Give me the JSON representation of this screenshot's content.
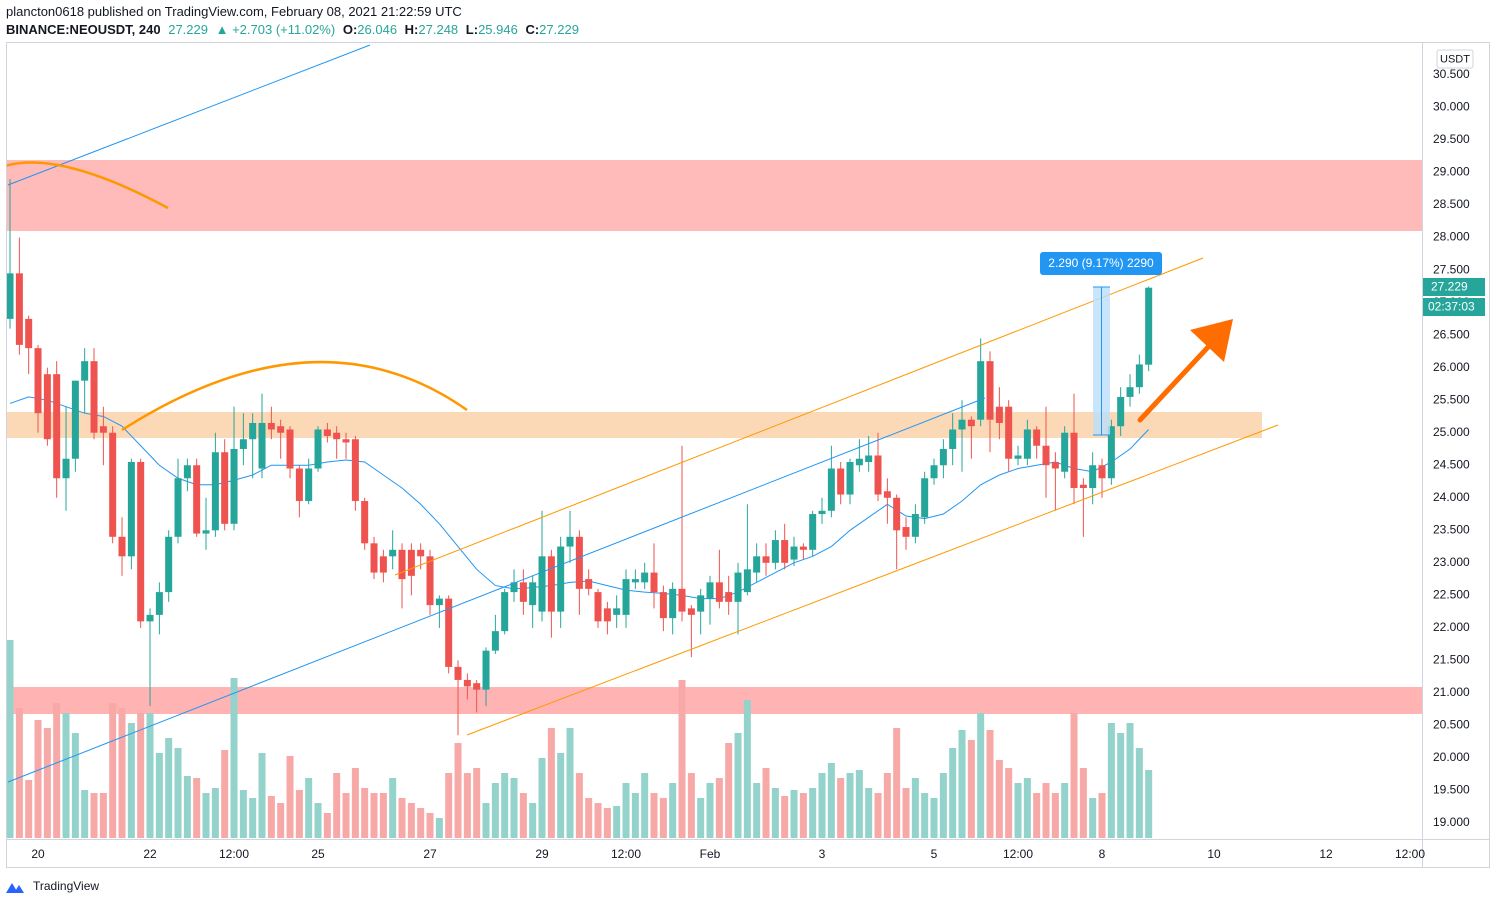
{
  "header": {
    "publisher_line": "plancton0618 published on TradingView.com, February 08, 2021 21:22:59 UTC",
    "symbol": "BINANCE:NEOUSDT, 240",
    "last": "27.229",
    "change": "▲ +2.703 (+11.02%)",
    "ohlc": [
      {
        "key": "O:",
        "value": "26.046"
      },
      {
        "key": "H:",
        "value": "27.248"
      },
      {
        "key": "L:",
        "value": "25.946"
      },
      {
        "key": "C:",
        "value": "27.229"
      }
    ]
  },
  "axis_currency": "USDT",
  "last_price_label": "27.229",
  "countdown": "02:37:03",
  "measure_label": "2.290 (9.17%) 2290",
  "footer": "TradingView",
  "chart_data": {
    "type": "candlestick",
    "x": [
      19.5,
      19.667,
      19.833,
      20,
      20.167,
      20.333,
      20.5,
      20.667,
      20.833,
      21,
      21.167,
      21.333,
      21.5,
      21.667,
      21.833,
      22,
      22.167,
      22.333,
      22.5,
      22.667,
      22.833,
      23,
      23.167,
      23.333,
      23.5,
      23.667,
      23.833,
      24,
      24.167,
      24.333,
      24.5,
      24.667,
      24.833,
      25,
      25.167,
      25.333,
      25.5,
      25.667,
      25.833,
      26,
      26.167,
      26.333,
      26.5,
      26.667,
      26.833,
      27,
      27.167,
      27.333,
      27.5,
      27.667,
      27.833,
      28,
      28.167,
      28.333,
      28.5,
      28.667,
      28.833,
      29,
      29.167,
      29.333,
      29.5,
      29.667,
      29.833,
      30,
      30.167,
      30.333,
      30.5,
      30.667,
      30.833,
      31,
      31.167,
      31.333,
      31.5,
      31.667,
      31.833,
      32,
      32.167,
      32.333,
      32.5,
      32.667,
      32.833,
      33,
      33.167,
      33.333,
      33.5,
      33.667,
      33.833,
      34,
      34.167,
      34.333,
      34.5,
      34.667,
      34.833,
      35,
      35.167,
      35.333,
      35.5,
      35.667,
      35.833,
      36,
      36.167,
      36.333,
      36.5,
      36.667,
      36.833,
      37,
      37.167,
      37.333,
      37.5,
      37.667,
      37.833,
      38,
      38.167,
      38.333,
      38.5,
      38.667,
      38.833,
      39,
      39.167,
      39.333,
      39.5,
      39.667,
      39.833
    ],
    "open": [
      26.75,
      27.45,
      26.75,
      26.3,
      25.9,
      25.9,
      24.3,
      24.6,
      25.8,
      26.1,
      25.1,
      25.0,
      23.4,
      23.1,
      24.55,
      22.1,
      22.2,
      22.55,
      23.4,
      24.3,
      24.5,
      23.45,
      23.5,
      24.7,
      23.6,
      24.75,
      24.9,
      24.45,
      25.15,
      25.1,
      25.05,
      24.45,
      23.95,
      24.45,
      25.05,
      25.0,
      24.9,
      24.9,
      23.95,
      23.3,
      23.1,
      23.1,
      23.2,
      23.2,
      23.2,
      23.1,
      22.35,
      22.45,
      21.4,
      21.2,
      21.15,
      21.05,
      21.65,
      21.95,
      22.55,
      22.7,
      22.35,
      22.25,
      23.1,
      22.25,
      23.25,
      23.4,
      22.75,
      22.55,
      22.3,
      22.2,
      22.2,
      22.7,
      22.7,
      22.85,
      22.55,
      22.15,
      22.6,
      22.3,
      22.25,
      22.45,
      22.7,
      22.55,
      22.4,
      22.55,
      22.85,
      23.1,
      23.0,
      23.35,
      23.05,
      23.25,
      23.2,
      23.75,
      23.8,
      24.45,
      24.05,
      24.5,
      24.55,
      24.65,
      24.1,
      24.0,
      23.55,
      23.4,
      23.7,
      24.3,
      24.5,
      24.75,
      25.05,
      25.2,
      25.2,
      26.1,
      25.4,
      25.4,
      24.6,
      24.6,
      25.05,
      24.8,
      24.55,
      24.4,
      25.0,
      24.2,
      24.15,
      24.5,
      24.3,
      25.1,
      25.55,
      25.7,
      26.046
    ],
    "high": [
      28.9,
      28.0,
      26.8,
      26.35,
      26.0,
      26.1,
      25.4,
      25.8,
      26.3,
      26.3,
      25.4,
      25.1,
      23.7,
      24.6,
      24.6,
      22.3,
      22.7,
      23.5,
      24.6,
      24.6,
      24.6,
      24.0,
      25.0,
      24.9,
      25.4,
      25.3,
      25.3,
      25.6,
      25.4,
      25.2,
      25.1,
      24.5,
      24.6,
      25.1,
      25.15,
      25.1,
      25.0,
      24.95,
      24.0,
      23.4,
      23.2,
      23.5,
      23.3,
      23.3,
      23.3,
      23.2,
      22.5,
      22.5,
      21.5,
      21.3,
      21.2,
      21.7,
      22.2,
      22.6,
      22.9,
      22.9,
      22.8,
      23.8,
      23.2,
      23.4,
      23.8,
      23.5,
      22.9,
      22.6,
      22.4,
      22.5,
      22.9,
      22.9,
      23.0,
      23.3,
      22.65,
      22.7,
      24.8,
      22.35,
      22.6,
      22.8,
      23.2,
      22.8,
      23.0,
      23.9,
      23.3,
      23.3,
      23.5,
      23.6,
      23.4,
      23.3,
      23.8,
      24.0,
      24.8,
      24.55,
      24.6,
      24.9,
      24.95,
      25.0,
      24.3,
      24.05,
      23.7,
      23.9,
      24.4,
      24.6,
      24.9,
      25.3,
      25.5,
      25.25,
      26.45,
      26.25,
      25.7,
      25.5,
      24.8,
      25.2,
      25.1,
      25.4,
      24.7,
      25.1,
      25.6,
      24.3,
      24.7,
      24.6,
      25.2,
      25.7,
      25.9,
      26.2,
      27.248
    ],
    "low": [
      26.6,
      26.2,
      25.9,
      25.0,
      24.8,
      24.0,
      23.8,
      24.4,
      25.3,
      24.9,
      24.5,
      23.3,
      22.8,
      22.9,
      22.0,
      20.8,
      21.9,
      22.4,
      23.3,
      24.1,
      23.4,
      23.2,
      23.4,
      23.5,
      23.5,
      24.5,
      24.3,
      24.3,
      24.9,
      24.6,
      24.3,
      23.7,
      23.9,
      24.4,
      24.85,
      24.6,
      24.6,
      23.8,
      23.2,
      22.75,
      22.7,
      22.9,
      22.3,
      22.5,
      22.9,
      22.2,
      22.0,
      21.3,
      20.35,
      20.9,
      20.7,
      20.8,
      21.6,
      21.9,
      22.4,
      22.2,
      22.0,
      22.1,
      21.85,
      22.0,
      23.0,
      22.2,
      22.5,
      22.0,
      21.9,
      22.0,
      22.0,
      22.6,
      22.6,
      22.3,
      21.95,
      21.9,
      22.1,
      21.55,
      21.9,
      22.05,
      22.3,
      22.2,
      21.9,
      22.5,
      22.7,
      22.8,
      22.9,
      22.9,
      22.95,
      23.05,
      23.1,
      23.6,
      23.7,
      23.9,
      23.9,
      24.4,
      24.4,
      23.95,
      23.6,
      22.9,
      23.2,
      23.3,
      23.6,
      24.2,
      24.3,
      24.5,
      24.4,
      24.6,
      25.1,
      24.7,
      24.9,
      24.4,
      24.5,
      24.5,
      24.6,
      24.0,
      23.8,
      24.3,
      23.9,
      23.4,
      23.9,
      24.0,
      24.2,
      24.95,
      25.4,
      25.6,
      25.946
    ],
    "close": [
      27.45,
      26.35,
      26.3,
      25.3,
      24.9,
      24.3,
      24.6,
      25.8,
      26.1,
      25.0,
      25.0,
      23.4,
      23.1,
      24.55,
      22.1,
      22.2,
      22.55,
      23.4,
      24.3,
      24.5,
      23.45,
      23.5,
      24.7,
      23.6,
      24.75,
      24.9,
      25.15,
      25.15,
      25.05,
      25.0,
      24.45,
      23.95,
      24.45,
      25.05,
      24.95,
      24.9,
      24.85,
      23.95,
      23.3,
      22.85,
      22.85,
      23.2,
      22.75,
      22.8,
      23.1,
      22.35,
      22.45,
      21.4,
      21.2,
      21.1,
      21.05,
      21.65,
      21.95,
      22.55,
      22.7,
      22.4,
      22.7,
      23.1,
      22.25,
      23.25,
      23.4,
      22.6,
      22.6,
      22.1,
      22.1,
      22.3,
      22.75,
      22.75,
      22.85,
      22.55,
      22.15,
      22.6,
      22.25,
      22.2,
      22.5,
      22.7,
      22.4,
      22.4,
      22.85,
      22.9,
      23.1,
      23.0,
      23.35,
      23.0,
      23.25,
      23.2,
      23.75,
      23.8,
      24.45,
      24.05,
      24.55,
      24.6,
      24.65,
      24.05,
      24.0,
      23.5,
      23.4,
      23.75,
      24.3,
      24.5,
      24.75,
      25.05,
      25.2,
      25.1,
      26.1,
      25.2,
      25.15,
      24.6,
      24.65,
      25.05,
      24.8,
      24.5,
      24.45,
      25.0,
      24.15,
      24.15,
      24.5,
      24.3,
      25.1,
      25.55,
      25.7,
      26.05,
      27.229
    ],
    "volume": [
      198,
      130,
      58,
      118,
      110,
      135,
      125,
      105,
      48,
      45,
      45,
      135,
      130,
      115,
      125,
      125,
      85,
      100,
      90,
      62,
      60,
      45,
      50,
      88,
      160,
      48,
      40,
      85,
      42,
      35,
      82,
      48,
      60,
      35,
      25,
      65,
      45,
      70,
      50,
      45,
      45,
      60,
      40,
      35,
      30,
      25,
      20,
      65,
      95,
      65,
      70,
      35,
      55,
      65,
      60,
      45,
      35,
      80,
      110,
      85,
      110,
      65,
      40,
      35,
      30,
      32,
      55,
      45,
      65,
      45,
      40,
      55,
      158,
      65,
      40,
      55,
      60,
      95,
      105,
      138,
      55,
      70,
      50,
      42,
      48,
      45,
      50,
      65,
      75,
      60,
      65,
      68,
      50,
      45,
      65,
      110,
      50,
      60,
      45,
      40,
      65,
      90,
      108,
      98,
      125,
      108,
      78,
      70,
      55,
      60,
      45,
      55,
      45,
      55,
      125,
      70,
      40,
      45,
      115,
      105,
      115,
      90,
      68
    ],
    "volume_lim": [
      0,
      200
    ],
    "ma": {
      "x": [
        19.5,
        19.833,
        20.167,
        20.5,
        20.833,
        21.167,
        21.5,
        21.833,
        22.167,
        22.5,
        22.833,
        23.167,
        23.5,
        23.833,
        24.167,
        24.5,
        24.833,
        25.167,
        25.5,
        25.833,
        26.167,
        26.5,
        26.833,
        27.167,
        27.5,
        27.833,
        28.167,
        28.5,
        28.833,
        29.167,
        29.5,
        29.833,
        30.167,
        30.5,
        30.833,
        31.167,
        31.5,
        31.833,
        32.167,
        32.5,
        32.833,
        33.167,
        33.5,
        33.833,
        34.167,
        34.5,
        34.833,
        35.167,
        35.5,
        35.833,
        36.167,
        36.5,
        36.833,
        37.167,
        37.5,
        37.833,
        38.167,
        38.5,
        38.833,
        39.167,
        39.5,
        39.833
      ],
      "values": [
        25.45,
        25.55,
        25.5,
        25.4,
        25.3,
        25.25,
        25.1,
        24.8,
        24.5,
        24.3,
        24.2,
        24.2,
        24.27,
        24.35,
        24.5,
        24.5,
        24.5,
        24.55,
        24.58,
        24.55,
        24.35,
        24.15,
        23.9,
        23.6,
        23.25,
        22.9,
        22.65,
        22.6,
        22.62,
        22.65,
        22.7,
        22.72,
        22.65,
        22.58,
        22.55,
        22.53,
        22.5,
        22.45,
        22.45,
        22.55,
        22.7,
        22.85,
        23.0,
        23.1,
        23.25,
        23.5,
        23.7,
        23.9,
        23.72,
        23.68,
        23.75,
        23.95,
        24.2,
        24.35,
        24.45,
        24.5,
        24.55,
        24.45,
        24.4,
        24.55,
        24.75,
        25.05
      ],
      "color": "#2196f3"
    },
    "up_color": "#26a69a",
    "down_color": "#ef5350",
    "volume_up_color": "#94d2cc",
    "volume_down_color": "#f7a9a7",
    "xlim": [
      19.321,
      44.714
    ],
    "ylim": [
      18.77,
      30.96
    ],
    "xticks": [
      20,
      22,
      {
        "value": 23.5,
        "label": "12:00"
      },
      25,
      27,
      29,
      {
        "value": 30.5,
        "label": "12:00"
      },
      {
        "value": 32,
        "label": "Feb"
      },
      {
        "value": 34,
        "label": "3"
      },
      {
        "value": 36,
        "label": "5"
      },
      {
        "value": 37.5,
        "label": "12:00"
      },
      {
        "value": 39,
        "label": "8"
      },
      {
        "value": 41,
        "label": "10"
      },
      {
        "value": 43,
        "label": "12"
      },
      {
        "value": 44.5,
        "label": "12:00"
      }
    ],
    "yticks": [
      {
        "value": 19,
        "label": "19.000"
      },
      {
        "value": 19.5,
        "label": "19.500"
      },
      {
        "value": 20,
        "label": "20.000"
      },
      {
        "value": 20.5,
        "label": "20.500"
      },
      {
        "value": 21,
        "label": "21.000"
      },
      {
        "value": 21.5,
        "label": "21.500"
      },
      {
        "value": 22,
        "label": "22.000"
      },
      {
        "value": 22.5,
        "label": "22.500"
      },
      {
        "value": 23,
        "label": "23.000"
      },
      {
        "value": 23.5,
        "label": "23.500"
      },
      {
        "value": 24,
        "label": "24.000"
      },
      {
        "value": 24.5,
        "label": "24.500"
      },
      {
        "value": 25,
        "label": "25.000"
      },
      {
        "value": 25.5,
        "label": "25.500"
      },
      {
        "value": 26,
        "label": "26.000"
      },
      {
        "value": 26.5,
        "label": "26.500"
      },
      {
        "value": 27,
        "label": "27.000"
      },
      {
        "value": 27.5,
        "label": "27.500"
      },
      {
        "value": 28,
        "label": "28.000"
      },
      {
        "value": 28.5,
        "label": "28.500"
      },
      {
        "value": 29,
        "label": "29.000"
      },
      {
        "value": 29.5,
        "label": "29.500"
      },
      {
        "value": 30,
        "label": "30.000"
      },
      {
        "value": 30.5,
        "label": "30.500"
      }
    ],
    "grid": false
  }
}
